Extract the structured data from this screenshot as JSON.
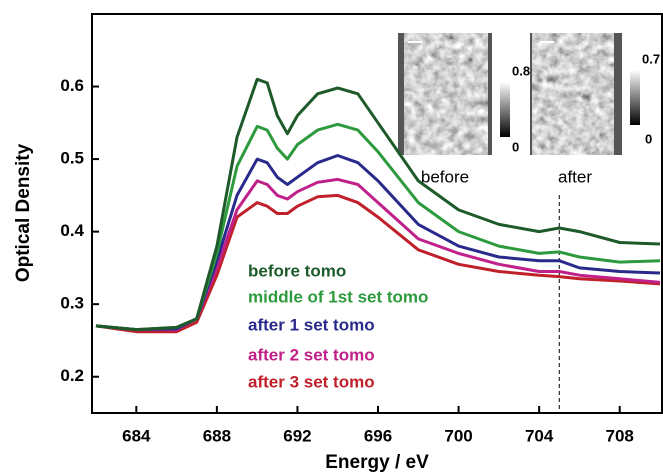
{
  "chart_data": {
    "type": "line",
    "xlabel": "Energy / eV",
    "ylabel": "Optical Density",
    "x": [
      682,
      684,
      686,
      687,
      688,
      689,
      690,
      690.5,
      691,
      691.5,
      692,
      693,
      694,
      695,
      696,
      698,
      700,
      702,
      704,
      705,
      706,
      708,
      710
    ],
    "series": [
      {
        "name": "before tomo",
        "color": "#1e5a2a",
        "values": [
          0.27,
          0.265,
          0.268,
          0.28,
          0.38,
          0.53,
          0.61,
          0.605,
          0.56,
          0.535,
          0.56,
          0.59,
          0.598,
          0.59,
          0.55,
          0.47,
          0.43,
          0.41,
          0.4,
          0.405,
          0.4,
          0.385,
          0.383
        ]
      },
      {
        "name": "middle of 1st set tomo",
        "color": "#2e9a3e",
        "values": [
          0.27,
          0.265,
          0.268,
          0.28,
          0.37,
          0.49,
          0.545,
          0.54,
          0.515,
          0.5,
          0.52,
          0.54,
          0.548,
          0.54,
          0.51,
          0.44,
          0.4,
          0.38,
          0.37,
          0.372,
          0.365,
          0.358,
          0.36
        ]
      },
      {
        "name": "after 1 set tomo",
        "color": "#2a2a8c",
        "values": [
          0.27,
          0.265,
          0.266,
          0.28,
          0.36,
          0.45,
          0.5,
          0.495,
          0.475,
          0.465,
          0.475,
          0.495,
          0.505,
          0.495,
          0.47,
          0.41,
          0.38,
          0.365,
          0.36,
          0.36,
          0.35,
          0.345,
          0.343
        ]
      },
      {
        "name": "after 2 set tomo",
        "color": "#c0208a",
        "values": [
          0.27,
          0.265,
          0.265,
          0.28,
          0.35,
          0.43,
          0.47,
          0.465,
          0.45,
          0.445,
          0.455,
          0.468,
          0.472,
          0.465,
          0.44,
          0.39,
          0.37,
          0.355,
          0.345,
          0.345,
          0.34,
          0.335,
          0.33
        ]
      },
      {
        "name": "after 3 set tomo",
        "color": "#c0202a",
        "values": [
          0.27,
          0.262,
          0.262,
          0.275,
          0.34,
          0.42,
          0.44,
          0.435,
          0.425,
          0.425,
          0.435,
          0.448,
          0.45,
          0.44,
          0.42,
          0.375,
          0.355,
          0.345,
          0.34,
          0.338,
          0.335,
          0.332,
          0.328
        ]
      }
    ],
    "xlim": [
      681.8,
      710.1
    ],
    "ylim": [
      0.15,
      0.7
    ],
    "xticks": [
      684,
      688,
      692,
      696,
      700,
      704,
      708
    ],
    "yticks": [
      0.2,
      0.3,
      0.4,
      0.5,
      0.6
    ],
    "vline_x": 705,
    "inset": [
      {
        "label": "before",
        "cbar_max": 0.8,
        "cbar_min": 0
      },
      {
        "label": "after",
        "cbar_max": 0.7,
        "cbar_min": 0
      }
    ]
  }
}
